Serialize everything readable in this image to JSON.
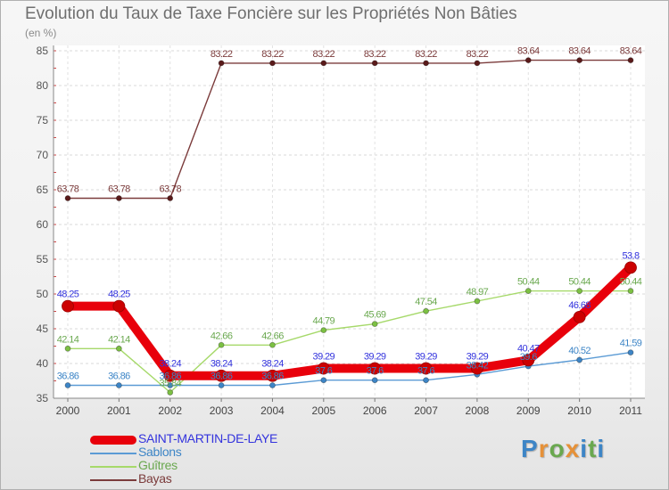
{
  "chart_data": {
    "type": "line",
    "title": "Evolution du Taux de Taxe Foncière sur les Propriétés Non Bâties",
    "ylabel": "(en %)",
    "xlabel": "",
    "ylim": [
      35,
      85
    ],
    "yticks": [
      35,
      40,
      45,
      50,
      55,
      60,
      65,
      70,
      75,
      80,
      85
    ],
    "grid": true,
    "categories": [
      "2000",
      "2001",
      "2002",
      "2003",
      "2004",
      "2005",
      "2006",
      "2007",
      "2008",
      "2009",
      "2010",
      "2011"
    ],
    "legend_position": "bottom-left",
    "series": [
      {
        "name": "SAINT-MARTIN-DE-LAYE",
        "color": "#e8000b",
        "text_color": "#3333dd",
        "marker_color": "#cc0000",
        "values": [
          48.25,
          48.25,
          38.24,
          38.24,
          38.24,
          39.29,
          39.29,
          39.29,
          39.29,
          40.47,
          46.68,
          53.8
        ],
        "labels": [
          "48.25",
          "48.25",
          "38.24",
          "38.24",
          "38.24",
          "39.29",
          "39.29",
          "39.29",
          "39.29",
          "40.47",
          "46.68",
          "53.8"
        ]
      },
      {
        "name": "Sablons",
        "color": "#5b9bd5",
        "text_color": "#3d85c6",
        "marker_color": "#3d85c6",
        "values": [
          36.86,
          36.86,
          36.86,
          36.86,
          36.86,
          37.6,
          37.6,
          37.6,
          38.42,
          39.6,
          40.52,
          41.59
        ],
        "labels": [
          "36.86",
          "36.86",
          "36.86",
          "36.86",
          "36.86",
          "37.6",
          "37.6",
          "37.6",
          "38.42",
          "39.6",
          "40.52",
          "41.59"
        ]
      },
      {
        "name": "Guîtres",
        "color": "#a6d96a",
        "text_color": "#6aa84f",
        "marker_color": "#7cc043",
        "values": [
          42.14,
          42.14,
          35.84,
          42.66,
          42.66,
          44.79,
          45.69,
          47.54,
          48.97,
          50.44,
          50.44,
          50.44
        ],
        "labels": [
          "42.14",
          "42.14",
          "35.84",
          "42.66",
          "42.66",
          "44.79",
          "45.69",
          "47.54",
          "48.97",
          "50.44",
          "50.44",
          "50.44"
        ]
      },
      {
        "name": "Bayas",
        "color": "#7b3b3b",
        "text_color": "#7b3b3b",
        "marker_color": "#5a1a1a",
        "values": [
          63.78,
          63.78,
          63.78,
          83.22,
          83.22,
          83.22,
          83.22,
          83.22,
          83.22,
          83.64,
          83.64,
          83.64
        ],
        "labels": [
          "63.78",
          "63.78",
          "63.78",
          "83.22",
          "83.22",
          "83.22",
          "83.22",
          "83.22",
          "83.22",
          "83.64",
          "83.64",
          "83.64"
        ]
      }
    ]
  },
  "logo": {
    "letters": [
      "P",
      "r",
      "o",
      "x",
      "i",
      "t",
      "i"
    ],
    "colors": [
      "#3d85c6",
      "#e69138",
      "#6aa84f",
      "#e69138",
      "#3d85c6",
      "#6aa84f",
      "#3d85c6"
    ]
  }
}
